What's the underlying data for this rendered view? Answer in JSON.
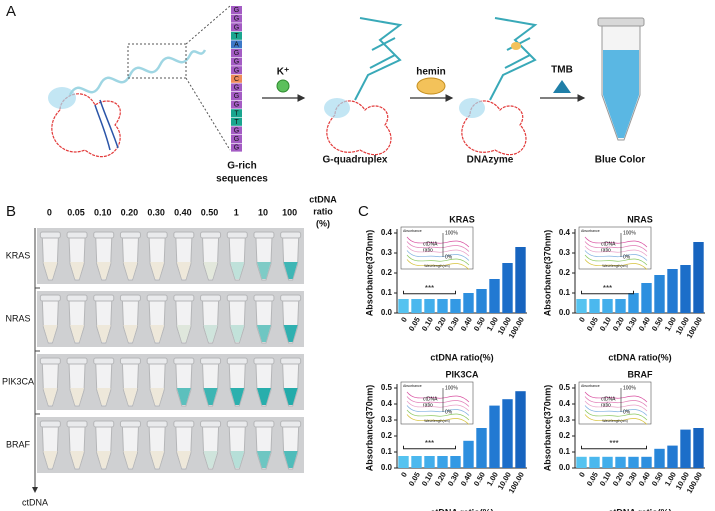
{
  "panel_labels": [
    "A",
    "B",
    "C"
  ],
  "panel_a": {
    "sequence": [
      "G",
      "G",
      "G",
      "T",
      "A",
      "G",
      "G",
      "G",
      "C",
      "G",
      "G",
      "G",
      "T",
      "T",
      "G",
      "G",
      "G"
    ],
    "sequence_label": [
      "G-rich",
      "sequences"
    ],
    "step1": "K⁺",
    "step2": "hemin",
    "step3": "TMB",
    "stage1": "G-quadruplex",
    "stage2": "DNAzyme",
    "stage3": "Blue Color"
  },
  "panel_b": {
    "columns": [
      "0",
      "0.05",
      "0.10",
      "0.20",
      "0.30",
      "0.40",
      "0.50",
      "1",
      "10",
      "100"
    ],
    "column_title": [
      "ctDNA",
      "ratio",
      "(%)"
    ],
    "axis_label": "ctDNA",
    "rows": [
      {
        "label": "KRAS",
        "liquid": [
          "#eee8da",
          "#eee8da",
          "#eee8da",
          "#eee8da",
          "#eee8da",
          "#eee8da",
          "#e3e8dc",
          "#bfe1da",
          "#7fcbc6",
          "#3fb6b5"
        ]
      },
      {
        "label": "NRAS",
        "liquid": [
          "#eee8da",
          "#eee8da",
          "#eee8da",
          "#eee8da",
          "#eee8da",
          "#dfe7dc",
          "#cfe4dc",
          "#c2e2da",
          "#6ec6c2",
          "#2fb0b0"
        ]
      },
      {
        "label": "PIK3CA",
        "liquid": [
          "#eee8da",
          "#eee8da",
          "#eee8da",
          "#eee8da",
          "#eee8da",
          "#5cc0bd",
          "#3db5b3",
          "#2cb0ae",
          "#28aeac",
          "#22abaa"
        ]
      },
      {
        "label": "BRAF",
        "liquid": [
          "#eee8da",
          "#eee8da",
          "#eee8da",
          "#eee8da",
          "#eee8da",
          "#eee8da",
          "#cfe4dc",
          "#b6dfd8",
          "#6ec6c2",
          "#4fbcba"
        ]
      }
    ]
  },
  "chart_data": [
    {
      "type": "bar",
      "title": "KRAS",
      "xlabel": "ctDNA ratio(%)",
      "ylabel": "Absorbance(370nm)",
      "categories": [
        "0",
        "0.05",
        "0.10",
        "0.20",
        "0.30",
        "0.40",
        "0.50",
        "1.00",
        "10.00",
        "100.00"
      ],
      "values": [
        0.07,
        0.07,
        0.07,
        0.07,
        0.07,
        0.1,
        0.12,
        0.17,
        0.25,
        0.33
      ],
      "colors": [
        "#55c3f0",
        "#4bb8ee",
        "#42aeeb",
        "#3aa3e8",
        "#3399e4",
        "#2d8fdf",
        "#2886d9",
        "#2279d2",
        "#1c6ec9",
        "#1764bf"
      ],
      "ylim": [
        0,
        0.4
      ],
      "yticks": [
        {
          "value": 0,
          "label": "0.0"
        },
        0.1,
        0.2,
        0.3,
        0.4
      ],
      "significance": "***",
      "inset_labels": [
        "100%",
        "ctDNA",
        "ratio",
        "0%",
        "Absorbance",
        "Wavelength(nm)"
      ]
    },
    {
      "type": "bar",
      "title": "NRAS",
      "xlabel": "ctDNA ratio(%)",
      "ylabel": "Absorbance(370nm)",
      "categories": [
        "0",
        "0.05",
        "0.10",
        "0.20",
        "0.30",
        "0.40",
        "0.50",
        "1.00",
        "10.00",
        "100.00"
      ],
      "values": [
        0.07,
        0.07,
        0.07,
        0.07,
        0.1,
        0.15,
        0.19,
        0.22,
        0.24,
        0.355
      ],
      "colors": [
        "#55c3f0",
        "#4bb8ee",
        "#42aeeb",
        "#3aa3e8",
        "#3399e4",
        "#2d8fdf",
        "#2886d9",
        "#2279d2",
        "#1c6ec9",
        "#1764bf"
      ],
      "ylim": [
        0,
        0.4
      ],
      "yticks": [
        {
          "value": 0,
          "label": "0.0"
        },
        0.1,
        0.2,
        0.3,
        0.4
      ],
      "significance": "***",
      "inset_labels": [
        "100%",
        "ctDNA",
        "ratio",
        "0%",
        "Absorbance",
        "Wavelength(nm)"
      ]
    },
    {
      "type": "bar",
      "title": "PIK3CA",
      "xlabel": "ctDNA ratio(%)",
      "ylabel": "Absorbance(370nm)",
      "categories": [
        "0",
        "0.05",
        "0.10",
        "0.20",
        "0.30",
        "0.40",
        "0.50",
        "1.00",
        "10.00",
        "100.00"
      ],
      "values": [
        0.075,
        0.075,
        0.075,
        0.075,
        0.075,
        0.17,
        0.25,
        0.39,
        0.43,
        0.48
      ],
      "colors": [
        "#55c3f0",
        "#4bb8ee",
        "#42aeeb",
        "#3aa3e8",
        "#3399e4",
        "#2d8fdf",
        "#2886d9",
        "#2279d2",
        "#1c6ec9",
        "#1764bf"
      ],
      "ylim": [
        0,
        0.5
      ],
      "yticks": [
        {
          "value": 0,
          "label": "0.0"
        },
        0.1,
        0.2,
        0.3,
        0.4,
        0.5
      ],
      "significance": "***",
      "inset_labels": [
        "100%",
        "ctDNA",
        "ratio",
        "0%",
        "Absorbance",
        "Wavelength(nm)"
      ]
    },
    {
      "type": "bar",
      "title": "BRAF",
      "xlabel": "ctDNA ratio(%)",
      "ylabel": "Absorbance(370nm)",
      "categories": [
        "0",
        "0.05",
        "0.10",
        "0.20",
        "0.30",
        "0.40",
        "0.50",
        "1.00",
        "10.00",
        "100.00"
      ],
      "values": [
        0.07,
        0.07,
        0.07,
        0.07,
        0.07,
        0.07,
        0.12,
        0.14,
        0.24,
        0.25
      ],
      "colors": [
        "#55c3f0",
        "#4bb8ee",
        "#42aeeb",
        "#3aa3e8",
        "#3399e4",
        "#2d8fdf",
        "#2886d9",
        "#2279d2",
        "#1c6ec9",
        "#1764bf"
      ],
      "ylim": [
        0,
        0.5
      ],
      "yticks": [
        {
          "value": 0,
          "label": "0.0"
        },
        0.1,
        0.2,
        0.3,
        0.4,
        0.5
      ],
      "significance": "***",
      "inset_labels": [
        "100%",
        "ctDNA",
        "ratio",
        "0%",
        "Absorbance",
        "Wavelength(nm)"
      ]
    }
  ]
}
